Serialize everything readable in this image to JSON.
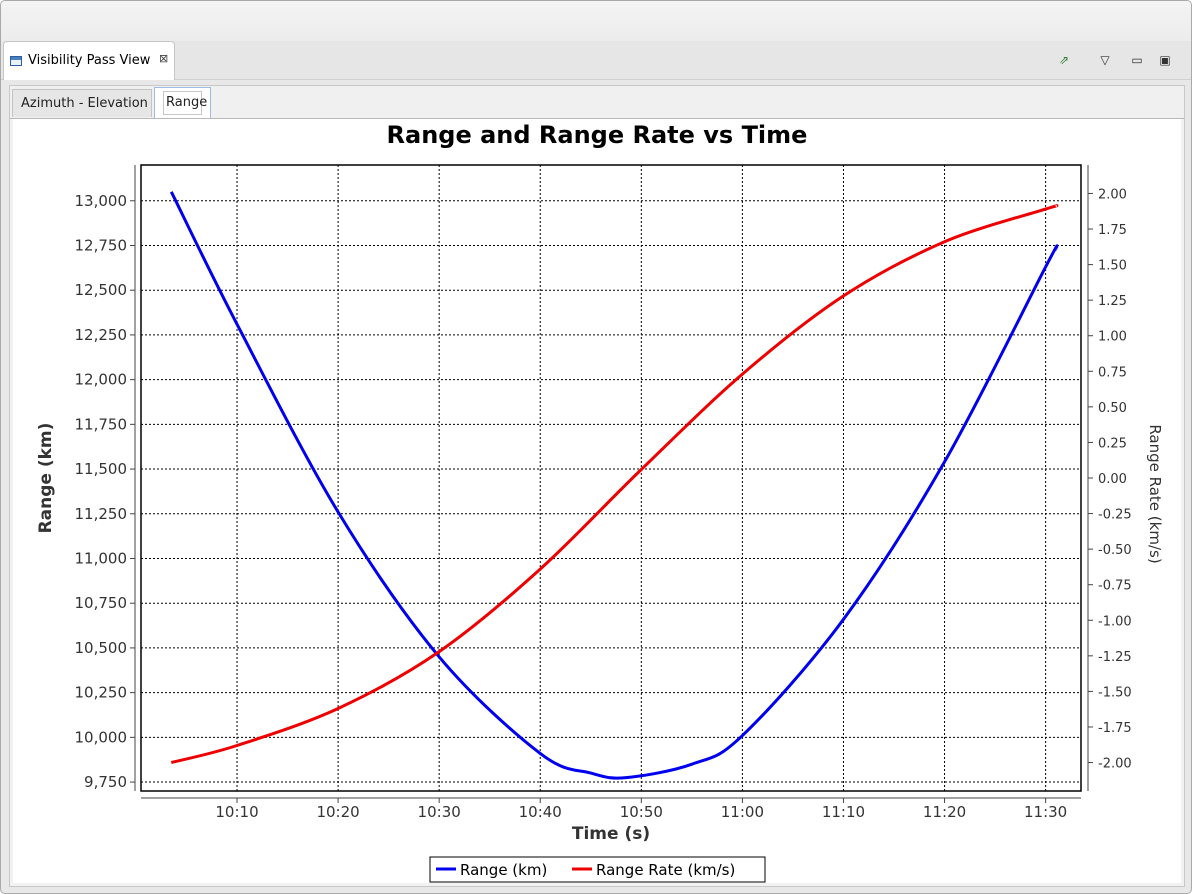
{
  "view": {
    "title": "Visibility Pass View",
    "close_glyph": "⊠",
    "actions": [
      {
        "icon": "export-icon",
        "glyph": "⇗"
      },
      {
        "icon": "view-menu-icon",
        "glyph": "▽"
      },
      {
        "icon": "minimize-icon",
        "glyph": "▭"
      },
      {
        "icon": "maximize-icon",
        "glyph": "▣"
      }
    ]
  },
  "tabs": [
    {
      "label": "Azimuth - Elevation",
      "selected": false
    },
    {
      "label": "Range",
      "selected": true
    }
  ],
  "chart_data": {
    "type": "line",
    "title": "Range and Range Rate vs Time",
    "xlabel": "Time (s)",
    "ylabel_left": "Range (km)",
    "ylabel_right": "Range Rate (km/s)",
    "x_ticks": [
      "10:10",
      "10:20",
      "10:30",
      "10:40",
      "10:50",
      "11:00",
      "11:10",
      "11:20",
      "11:30"
    ],
    "xlim": [
      "10:00:30",
      "11:33:30"
    ],
    "ylim_left": [
      9700,
      13200
    ],
    "ylim_right": [
      -2.2,
      2.2
    ],
    "yticks_left": [
      "9,750",
      "10,000",
      "10,250",
      "10,500",
      "10,750",
      "11,000",
      "11,250",
      "11,500",
      "11,750",
      "12,000",
      "12,250",
      "12,500",
      "12,750",
      "13,000"
    ],
    "yticks_right": [
      "-2.00",
      "-1.75",
      "-1.50",
      "-1.25",
      "-1.00",
      "-0.75",
      "-0.50",
      "-0.25",
      "0.00",
      "0.25",
      "0.50",
      "0.75",
      "1.00",
      "1.25",
      "1.50",
      "1.75",
      "2.00"
    ],
    "grid": true,
    "legend_position": "bottom",
    "series": [
      {
        "name": "Range (km)",
        "axis": "left",
        "color": "#0000ee",
        "x": [
          "10:03:30",
          "10:10:00",
          "10:20:00",
          "10:30:00",
          "10:40:00",
          "10:45:00",
          "10:48:30",
          "10:55:00",
          "11:00:00",
          "11:10:00",
          "11:20:00",
          "11:30:00",
          "11:31:00"
        ],
        "y": [
          13050,
          12310,
          11260,
          10450,
          9910,
          9800,
          9775,
          9850,
          10010,
          10660,
          11540,
          12630,
          12730
        ]
      },
      {
        "name": "Range Rate (km/s)",
        "axis": "right",
        "color": "#ee0000",
        "x": [
          "10:03:30",
          "10:10:00",
          "10:20:00",
          "10:30:00",
          "10:40:00",
          "10:50:00",
          "11:00:00",
          "11:10:00",
          "11:20:00",
          "11:30:00",
          "11:31:00"
        ],
        "y": [
          -2.0,
          -1.88,
          -1.62,
          -1.22,
          -0.64,
          0.06,
          0.73,
          1.28,
          1.66,
          1.89,
          1.91
        ]
      }
    ]
  }
}
